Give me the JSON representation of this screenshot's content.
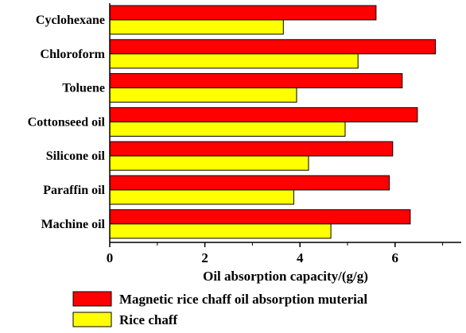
{
  "chart_data": {
    "type": "bar",
    "orientation": "horizontal",
    "categories": [
      "Cyclohexane",
      "Chloroform",
      "Toluene",
      "Cottonseed oil",
      "Silicone oil",
      "Paraffin oil",
      "Machine oil"
    ],
    "series": [
      {
        "name": "Magnetic rice chaff oil absorption muterial",
        "color": "#ff0000",
        "values": [
          5.6,
          6.85,
          6.15,
          6.47,
          5.95,
          5.88,
          6.32
        ]
      },
      {
        "name": "Rice chaff",
        "color": "#ffff00",
        "values": [
          3.65,
          5.22,
          3.93,
          4.95,
          4.18,
          3.87,
          4.65
        ]
      }
    ],
    "xlabel": "Oil absorption capacity/(g/g)",
    "ylabel": "",
    "xlim": [
      0,
      7.3
    ],
    "xticks": [
      "0",
      "2",
      "4",
      "6"
    ],
    "grid": false,
    "legend_position": "bottom"
  }
}
